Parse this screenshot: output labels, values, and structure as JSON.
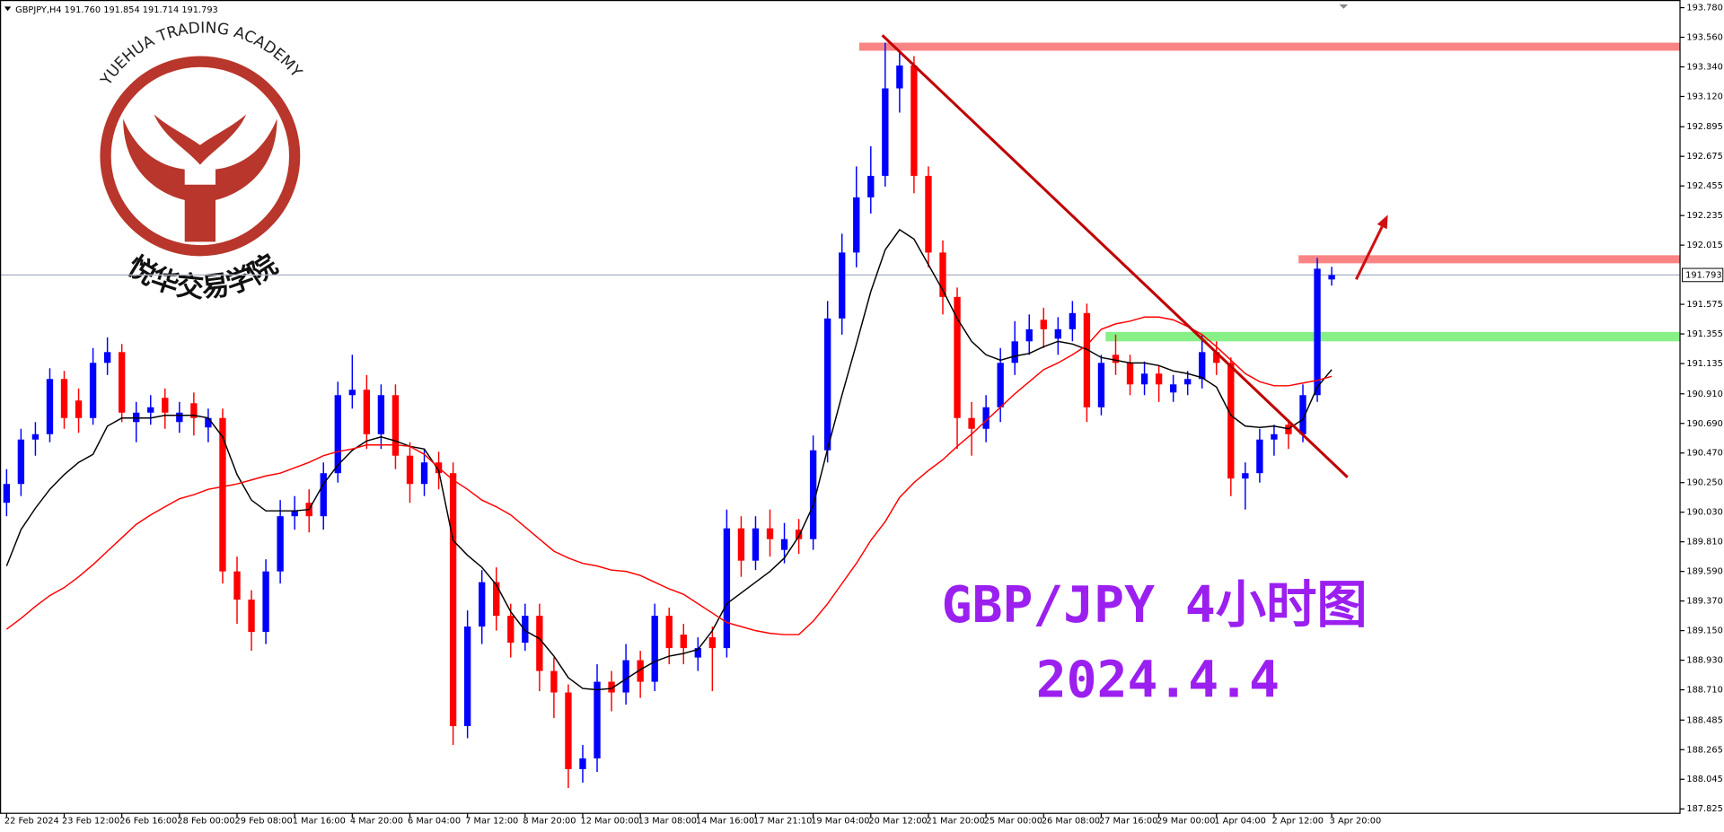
{
  "chart_data": {
    "type": "candlestick",
    "header": "GBPJPY,H4  191.760 191.854 191.714 191.793",
    "annotations": [
      "GBP/JPY 4小时图",
      "2024.4.4"
    ],
    "logo": {
      "text": "YUEHUA TRADING ACADEMY",
      "subtitle": "悦华交易学院"
    },
    "up_color": "#0000ff",
    "down_color": "#ff0000",
    "grid": false,
    "ylim": [
      187.792,
      193.837
    ],
    "yticks": [
      {
        "value": 193.78,
        "label": "193.780"
      },
      {
        "value": 193.56,
        "label": "193.560"
      },
      {
        "value": 193.34,
        "label": "193.340"
      },
      {
        "value": 193.12,
        "label": "193.120"
      },
      192.895,
      192.675,
      192.455,
      192.235,
      192.015,
      191.575,
      191.355,
      191.135,
      {
        "value": 190.91,
        "label": "190.910"
      },
      {
        "value": 190.69,
        "label": "190.690"
      },
      {
        "value": 190.47,
        "label": "190.470"
      },
      {
        "value": 190.25,
        "label": "190.250"
      },
      {
        "value": 190.03,
        "label": "190.030"
      },
      {
        "value": 189.81,
        "label": "189.810"
      },
      {
        "value": 189.59,
        "label": "189.590"
      },
      {
        "value": 189.37,
        "label": "189.370"
      },
      {
        "value": 189.15,
        "label": "189.150"
      },
      {
        "value": 188.93,
        "label": "188.930"
      },
      {
        "value": 188.71,
        "label": "188.710"
      },
      188.485,
      188.265,
      188.045,
      187.825
    ],
    "current_price": {
      "value": 191.793,
      "label": "191.793",
      "color": "#a8b0c0"
    },
    "categories": [
      "22 Feb 2024",
      null,
      null,
      null,
      "23 Feb 12:00",
      null,
      null,
      null,
      "26 Feb 16:00",
      null,
      null,
      null,
      "28 Feb 00:00",
      null,
      null,
      null,
      "29 Feb 08:00",
      null,
      null,
      null,
      "1 Mar 16:00",
      null,
      null,
      null,
      "4 Mar 20:00",
      null,
      null,
      null,
      "6 Mar 04:00",
      null,
      null,
      null,
      "7 Mar 12:00",
      null,
      null,
      null,
      "8 Mar 20:00",
      null,
      null,
      null,
      "12 Mar 00:00",
      null,
      null,
      null,
      "13 Mar 08:00",
      null,
      null,
      null,
      "14 Mar 16:00",
      null,
      null,
      null,
      "17 Mar 21:10",
      null,
      null,
      null,
      "19 Mar 04:00",
      null,
      null,
      null,
      "20 Mar 12:00",
      null,
      null,
      null,
      "21 Mar 20:00",
      null,
      null,
      null,
      "25 Mar 00:00",
      null,
      null,
      null,
      "26 Mar 08:00",
      null,
      null,
      null,
      "27 Mar 16:00",
      null,
      null,
      null,
      "29 Mar 00:00",
      null,
      null,
      null,
      "1 Apr 04:00",
      null,
      null,
      null,
      "2 Apr 12:00",
      null,
      null,
      null,
      "3 Apr 20:00"
    ],
    "open": [
      190.1,
      190.24,
      190.57,
      190.61,
      191.02,
      190.86,
      190.73,
      191.14,
      191.22,
      190.7,
      190.77,
      190.88,
      190.7,
      190.84,
      190.66,
      190.73,
      189.59,
      189.38,
      189.14,
      189.59,
      190.0,
      190.1,
      190.0,
      190.32,
      190.9,
      190.94,
      190.61,
      190.9,
      190.45,
      190.24,
      190.4,
      190.32,
      188.44,
      189.18,
      189.51,
      189.26,
      189.06,
      189.26,
      188.85,
      188.69,
      188.12,
      188.2,
      188.77,
      188.69,
      188.93,
      188.77,
      189.26,
      189.12,
      188.95,
      189.1,
      189.02,
      189.91,
      189.67,
      189.91,
      189.75,
      189.9,
      189.83,
      190.49,
      191.47,
      191.96,
      192.37,
      192.53,
      193.18,
      193.35,
      192.53,
      191.96,
      191.63,
      190.73,
      190.65,
      190.81,
      191.14,
      191.3,
      191.46,
      191.32,
      191.39,
      191.51,
      190.81,
      191.2,
      191.14,
      190.98,
      191.06,
      190.92,
      190.98,
      191.02,
      191.22,
      191.14,
      190.28,
      190.32,
      190.57,
      190.68,
      190.61,
      190.9,
      191.76
    ],
    "high": [
      190.35,
      190.65,
      190.7,
      191.1,
      191.08,
      190.95,
      191.25,
      191.33,
      191.28,
      190.85,
      190.9,
      190.95,
      190.85,
      190.92,
      190.8,
      190.8,
      189.7,
      189.45,
      189.68,
      190.12,
      190.15,
      190.2,
      190.4,
      191.0,
      191.2,
      191.05,
      190.98,
      190.98,
      190.55,
      190.5,
      190.48,
      190.4,
      189.3,
      189.6,
      189.62,
      189.35,
      189.35,
      189.35,
      188.95,
      188.75,
      188.3,
      188.9,
      188.85,
      189.05,
      189.0,
      189.35,
      189.32,
      189.2,
      189.1,
      189.18,
      190.05,
      190.0,
      190.0,
      190.05,
      189.95,
      189.98,
      190.6,
      191.6,
      192.1,
      192.6,
      192.75,
      193.52,
      193.45,
      193.42,
      192.6,
      192.05,
      191.7,
      190.85,
      190.9,
      191.25,
      191.45,
      191.5,
      191.55,
      191.48,
      191.6,
      191.58,
      191.2,
      191.35,
      191.2,
      191.15,
      191.12,
      191.05,
      191.08,
      191.35,
      191.3,
      191.18,
      190.4,
      190.65,
      190.68,
      190.72,
      190.98,
      191.92,
      191.854
    ],
    "low": [
      190.0,
      190.15,
      190.45,
      190.55,
      190.65,
      190.62,
      190.68,
      191.05,
      190.7,
      190.55,
      190.68,
      190.65,
      190.62,
      190.6,
      190.55,
      189.5,
      189.2,
      189.0,
      189.05,
      189.5,
      189.9,
      189.88,
      189.9,
      190.25,
      190.8,
      190.5,
      190.5,
      190.35,
      190.1,
      190.15,
      190.2,
      188.3,
      188.35,
      189.05,
      189.15,
      188.95,
      189.0,
      188.7,
      188.5,
      187.98,
      188.02,
      188.1,
      188.55,
      188.6,
      188.65,
      188.7,
      188.9,
      188.9,
      188.85,
      188.7,
      188.95,
      189.55,
      189.6,
      189.7,
      189.65,
      189.72,
      189.75,
      190.4,
      191.35,
      191.85,
      192.25,
      192.45,
      193.0,
      192.4,
      191.85,
      191.5,
      190.5,
      190.45,
      190.55,
      190.7,
      191.05,
      191.2,
      191.25,
      191.2,
      191.3,
      190.7,
      190.75,
      191.05,
      190.9,
      190.9,
      190.85,
      190.85,
      190.9,
      190.95,
      191.05,
      190.15,
      190.05,
      190.25,
      190.45,
      190.5,
      190.55,
      190.85,
      191.714
    ],
    "close": [
      190.24,
      190.57,
      190.61,
      191.02,
      190.73,
      190.73,
      191.14,
      191.22,
      190.77,
      190.77,
      190.81,
      190.77,
      190.77,
      190.73,
      190.73,
      189.59,
      189.38,
      189.14,
      189.59,
      190.0,
      190.04,
      190.0,
      190.32,
      190.9,
      190.94,
      190.61,
      190.9,
      190.45,
      190.24,
      190.4,
      190.32,
      188.44,
      189.18,
      189.51,
      189.26,
      189.06,
      189.26,
      188.85,
      188.69,
      188.12,
      188.2,
      188.77,
      188.69,
      188.93,
      188.77,
      189.26,
      189.02,
      189.02,
      189.02,
      189.02,
      189.91,
      189.67,
      189.91,
      189.83,
      189.83,
      189.83,
      190.49,
      191.47,
      191.96,
      192.37,
      192.53,
      193.18,
      193.35,
      192.53,
      191.96,
      191.63,
      190.73,
      190.65,
      190.81,
      191.14,
      191.3,
      191.39,
      191.39,
      191.39,
      191.51,
      190.81,
      191.14,
      191.14,
      190.98,
      191.06,
      190.98,
      190.98,
      191.02,
      191.22,
      191.14,
      190.28,
      190.32,
      190.57,
      190.61,
      190.61,
      190.9,
      191.84,
      191.793
    ],
    "series": [
      {
        "color": "#000000",
        "values": [
          189.63,
          189.9,
          190.06,
          190.2,
          190.31,
          190.4,
          190.46,
          190.67,
          190.73,
          190.73,
          190.73,
          190.75,
          190.75,
          190.75,
          190.73,
          190.59,
          190.31,
          190.12,
          190.04,
          190.04,
          190.04,
          190.05,
          190.24,
          190.38,
          190.49,
          190.56,
          190.59,
          190.56,
          190.52,
          190.5,
          190.34,
          189.82,
          189.71,
          189.62,
          189.49,
          189.29,
          189.15,
          189.09,
          188.96,
          188.8,
          188.72,
          188.71,
          188.72,
          188.79,
          188.86,
          188.92,
          188.96,
          188.98,
          189.01,
          189.15,
          189.35,
          189.43,
          189.51,
          189.59,
          189.69,
          189.85,
          190.08,
          190.5,
          190.9,
          191.28,
          191.67,
          191.98,
          192.13,
          192.06,
          191.87,
          191.68,
          191.47,
          191.3,
          191.2,
          191.16,
          191.19,
          191.21,
          191.26,
          191.3,
          191.28,
          191.24,
          191.18,
          191.16,
          191.14,
          191.14,
          191.12,
          191.08,
          191.06,
          191.03,
          190.96,
          190.75,
          190.67,
          190.66,
          190.67,
          190.65,
          190.72,
          190.96,
          191.09
        ]
      },
      {
        "color": "#ff0000",
        "values": [
          189.16,
          189.24,
          189.33,
          189.41,
          189.47,
          189.55,
          189.64,
          189.74,
          189.84,
          189.94,
          190.01,
          190.07,
          190.13,
          190.16,
          190.2,
          190.22,
          190.24,
          190.27,
          190.3,
          190.32,
          190.36,
          190.4,
          190.45,
          190.48,
          190.5,
          190.53,
          190.53,
          190.53,
          190.52,
          190.46,
          190.36,
          190.27,
          190.2,
          190.12,
          190.07,
          190.01,
          189.92,
          189.83,
          189.74,
          189.69,
          189.65,
          189.63,
          189.6,
          189.59,
          189.56,
          189.51,
          189.46,
          189.42,
          189.35,
          189.28,
          189.21,
          189.18,
          189.15,
          189.13,
          189.12,
          189.12,
          189.22,
          189.35,
          189.5,
          189.65,
          189.82,
          189.96,
          190.14,
          190.25,
          190.34,
          190.42,
          190.52,
          190.61,
          190.71,
          190.81,
          190.91,
          191.0,
          191.09,
          191.14,
          191.2,
          191.27,
          191.39,
          191.43,
          191.45,
          191.48,
          191.48,
          191.46,
          191.41,
          191.35,
          191.26,
          191.16,
          191.06,
          191.0,
          190.97,
          190.97,
          190.99,
          191.01,
          191.04
        ]
      }
    ],
    "zones": [
      {
        "color": "#f98484",
        "start": 59.2,
        "ylim": [
          193.46,
          193.52
        ]
      },
      {
        "color": "#f98484",
        "start": 89.7,
        "ylim": [
          191.88,
          191.94
        ]
      },
      {
        "color": "#86f086",
        "start": 76.3,
        "ylim": [
          191.3,
          191.37
        ]
      }
    ],
    "trendlines": [
      {
        "color": "#c00000",
        "x": [
          60.8,
          93.1
        ],
        "y": [
          193.575,
          190.29
        ]
      }
    ],
    "arrows": [
      {
        "color": "#d01010",
        "x": [
          93.7,
          95.9
        ],
        "y": [
          191.76,
          192.24
        ]
      }
    ]
  }
}
